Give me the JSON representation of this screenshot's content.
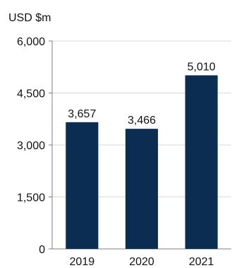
{
  "chart_data": {
    "type": "bar",
    "ylabel": "USD $m",
    "categories": [
      "2019",
      "2020",
      "2021"
    ],
    "values": [
      3657,
      3466,
      5010
    ],
    "value_labels": [
      "3,657",
      "3,466",
      "5,010"
    ],
    "ylim": [
      0,
      6000
    ],
    "yticks": [
      0,
      1500,
      3000,
      4500,
      6000
    ],
    "ytick_labels": [
      "0",
      "1,500",
      "3,000",
      "4,500",
      "6,000"
    ],
    "grid": true,
    "legend": "none",
    "bar_color": "#0b2d52",
    "grid_color": "#d9d9d9"
  }
}
